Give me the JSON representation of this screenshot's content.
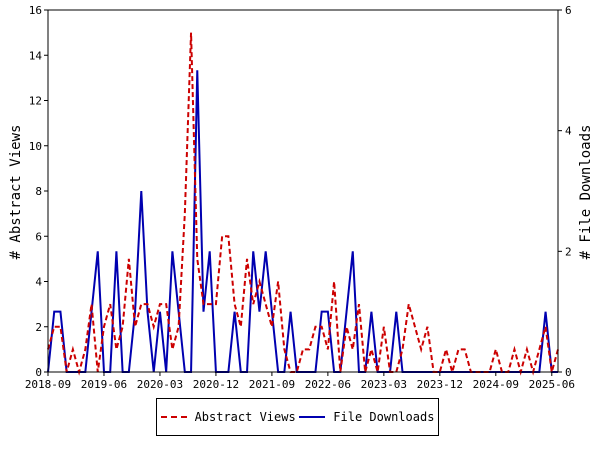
{
  "chart_data": {
    "type": "line",
    "x": [
      "2018-09",
      "2018-10",
      "2018-11",
      "2018-12",
      "2019-01",
      "2019-02",
      "2019-03",
      "2019-04",
      "2019-05",
      "2019-06",
      "2019-07",
      "2019-08",
      "2019-09",
      "2019-10",
      "2019-11",
      "2019-12",
      "2020-01",
      "2020-02",
      "2020-03",
      "2020-04",
      "2020-05",
      "2020-06",
      "2020-07",
      "2020-08",
      "2020-09",
      "2020-10",
      "2020-11",
      "2020-12",
      "2021-01",
      "2021-02",
      "2021-03",
      "2021-04",
      "2021-05",
      "2021-06",
      "2021-07",
      "2021-08",
      "2021-09",
      "2021-10",
      "2021-11",
      "2021-12",
      "2022-01",
      "2022-02",
      "2022-03",
      "2022-04",
      "2022-05",
      "2022-06",
      "2022-07",
      "2022-08",
      "2022-09",
      "2022-10",
      "2022-11",
      "2022-12",
      "2023-01",
      "2023-02",
      "2023-03",
      "2023-04",
      "2023-05",
      "2023-06",
      "2023-07",
      "2023-08",
      "2023-09",
      "2023-10",
      "2023-11",
      "2023-12",
      "2024-01",
      "2024-02",
      "2024-03",
      "2024-04",
      "2024-05",
      "2024-06",
      "2024-07",
      "2024-08",
      "2024-09",
      "2024-10",
      "2024-11",
      "2024-12",
      "2025-01",
      "2025-02",
      "2025-03",
      "2025-04",
      "2025-05",
      "2025-06",
      "2025-07"
    ],
    "x_ticks": [
      "2018-09",
      "2019-06",
      "2020-03",
      "2020-12",
      "2021-09",
      "2022-06",
      "2023-03",
      "2023-12",
      "2024-09",
      "2025-06"
    ],
    "series": [
      {
        "name": "Abstract Views",
        "axis": "left",
        "color": "#cc0000",
        "style": "dashed",
        "values": [
          1,
          2,
          2,
          0,
          1,
          0,
          1,
          3,
          0,
          2,
          3,
          1,
          2,
          5,
          2,
          3,
          3,
          2,
          3,
          3,
          1,
          2,
          7,
          15,
          5,
          3,
          3,
          3,
          6,
          6,
          3,
          2,
          5,
          3,
          4,
          3,
          2,
          4,
          1,
          0,
          0,
          1,
          1,
          2,
          2,
          1,
          4,
          0,
          2,
          1,
          3,
          0,
          1,
          0,
          2,
          0,
          0,
          1,
          3,
          2,
          1,
          2,
          0,
          0,
          1,
          0,
          1,
          1,
          0,
          0,
          0,
          0,
          1,
          0,
          0,
          1,
          0,
          1,
          0,
          1,
          2,
          0,
          1
        ]
      },
      {
        "name": "File Downloads",
        "axis": "right",
        "color": "#0000b0",
        "style": "solid",
        "values": [
          0,
          1,
          1,
          0,
          0,
          0,
          0,
          1,
          2,
          0,
          0,
          2,
          0,
          0,
          1,
          3,
          1,
          0,
          1,
          0,
          2,
          1,
          0,
          0,
          5,
          1,
          2,
          0,
          0,
          0,
          1,
          0,
          0,
          2,
          1,
          2,
          1,
          0,
          0,
          1,
          0,
          0,
          0,
          0,
          1,
          1,
          0,
          0,
          1,
          2,
          0,
          0,
          1,
          0,
          0,
          0,
          1,
          0,
          0,
          0,
          0,
          0,
          0,
          0,
          0,
          0,
          0,
          0,
          0,
          0,
          0,
          0,
          0,
          0,
          0,
          0,
          0,
          0,
          0,
          0,
          1,
          0,
          0
        ]
      }
    ],
    "ylabel": "# Abstract Views",
    "y2label": "# File Downloads",
    "ylim": [
      0,
      16
    ],
    "yticks": [
      0,
      2,
      4,
      6,
      8,
      10,
      12,
      14,
      16
    ],
    "y2lim": [
      0,
      6
    ],
    "y2ticks": [
      0,
      2,
      4,
      6
    ],
    "grid": false,
    "legend_position": "bottom-center"
  }
}
